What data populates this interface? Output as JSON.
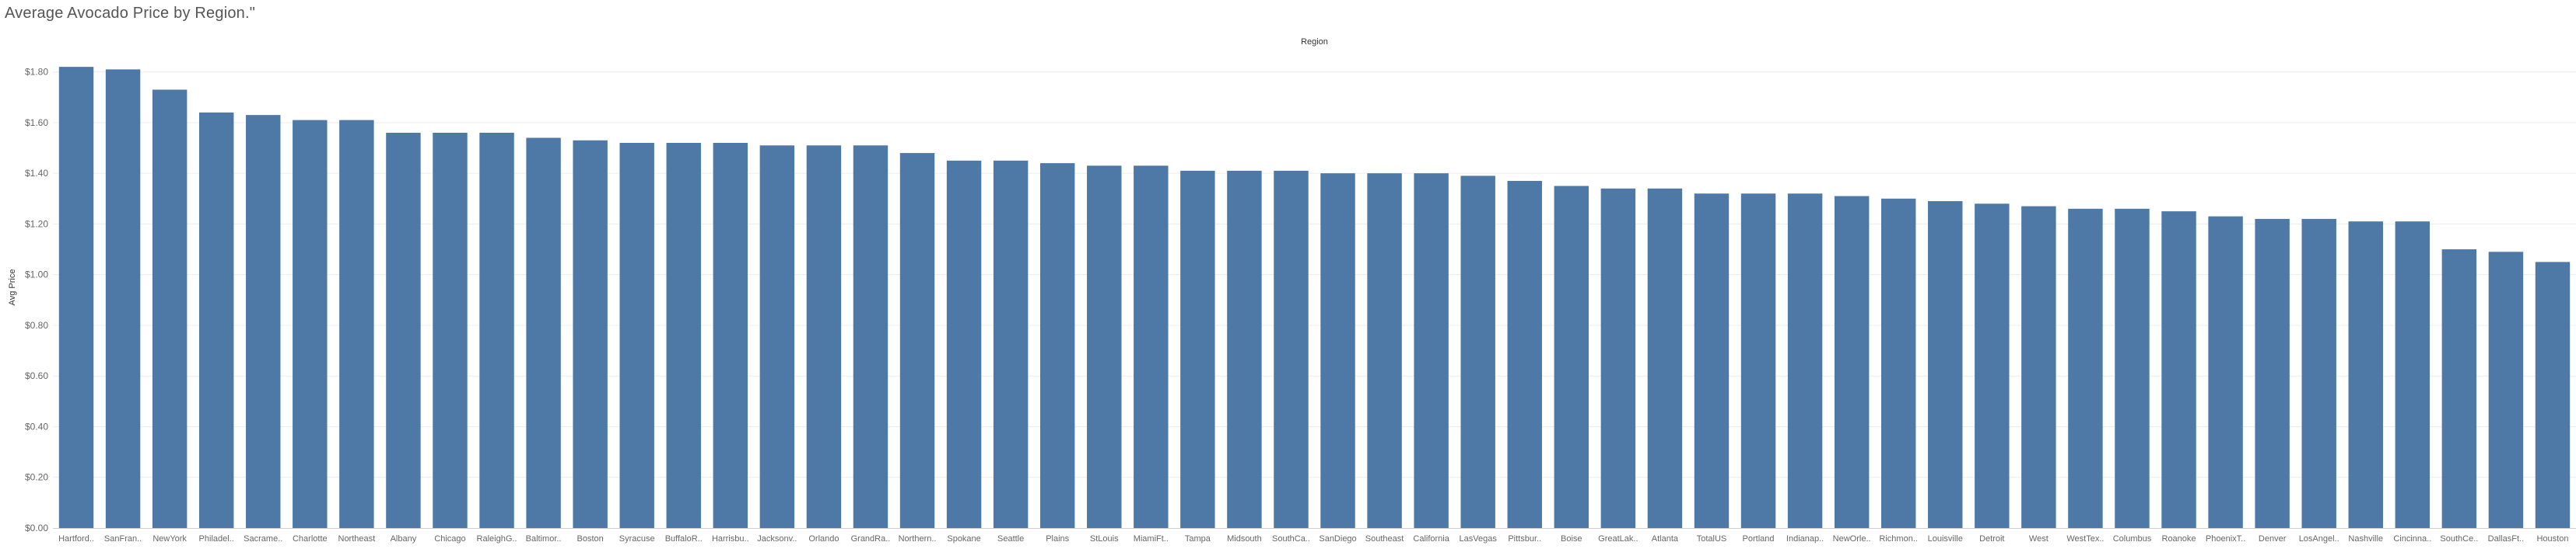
{
  "page": {
    "title": "Average Avocado Price by Region.\""
  },
  "chart_data": {
    "type": "bar",
    "header_title": "Region",
    "xlabel": "",
    "ylabel": "Avg Price",
    "ylim": [
      0,
      1.9
    ],
    "y_ticks": [
      0,
      0.2,
      0.4,
      0.6,
      0.8,
      1.0,
      1.2,
      1.4,
      1.6,
      1.8
    ],
    "y_tick_labels": [
      "$0.00",
      "$0.20",
      "$0.40",
      "$0.60",
      "$0.80",
      "$1.00",
      "$1.20",
      "$1.40",
      "$1.60",
      "$1.80"
    ],
    "grid": "horizontal",
    "bar_color": "#4e79a7",
    "categories": [
      "Hartford..",
      "SanFran..",
      "NewYork",
      "Philadel..",
      "Sacrame..",
      "Charlotte",
      "Northeast",
      "Albany",
      "Chicago",
      "RaleighG..",
      "Baltimor..",
      "Boston",
      "Syracuse",
      "BuffaloR..",
      "Harrisbu..",
      "Jacksonv..",
      "Orlando",
      "GrandRa..",
      "Northern..",
      "Spokane",
      "Seattle",
      "Plains",
      "StLouis",
      "MiamiFt..",
      "Tampa",
      "Midsouth",
      "SouthCa..",
      "SanDiego",
      "Southeast",
      "California",
      "LasVegas",
      "Pittsbur..",
      "Boise",
      "GreatLak..",
      "Atlanta",
      "TotalUS",
      "Portland",
      "Indianap..",
      "NewOrle..",
      "Richmon..",
      "Louisville",
      "Detroit",
      "West",
      "WestTex..",
      "Columbus",
      "Roanoke",
      "PhoenixT..",
      "Denver",
      "LosAngel..",
      "Nashville",
      "Cincinna..",
      "SouthCe..",
      "DallasFt..",
      "Houston"
    ],
    "values": [
      1.82,
      1.81,
      1.73,
      1.64,
      1.63,
      1.61,
      1.61,
      1.56,
      1.56,
      1.56,
      1.54,
      1.53,
      1.52,
      1.52,
      1.52,
      1.51,
      1.51,
      1.51,
      1.48,
      1.45,
      1.45,
      1.44,
      1.43,
      1.43,
      1.41,
      1.41,
      1.41,
      1.4,
      1.4,
      1.4,
      1.39,
      1.37,
      1.35,
      1.34,
      1.34,
      1.32,
      1.32,
      1.32,
      1.31,
      1.3,
      1.29,
      1.28,
      1.27,
      1.26,
      1.26,
      1.25,
      1.23,
      1.22,
      1.22,
      1.21,
      1.21,
      1.1,
      1.09,
      1.05
    ]
  }
}
